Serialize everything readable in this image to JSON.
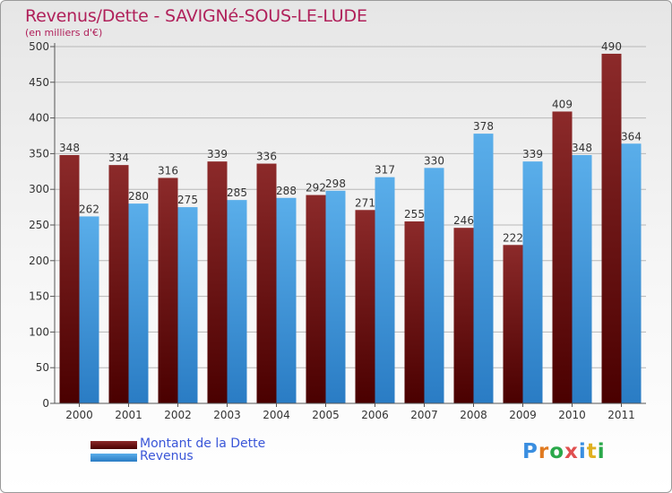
{
  "header": {
    "title": "Revenus/Dette - SAVIGNé-SOUS-LE-LUDE",
    "subtitle": "(en milliers d'€)"
  },
  "colors": {
    "dette": "#7a1818",
    "revenus": "#3d9ae0",
    "title": "#b0205a",
    "legend_text": "#3a56d8"
  },
  "legend": [
    {
      "label": "Montant de la Dette",
      "color": "#6e0f0f"
    },
    {
      "label": "Revenus",
      "color": "#3d9ae0"
    }
  ],
  "logo": {
    "text": "Proxiti"
  },
  "chart_data": {
    "type": "bar",
    "title": "Revenus/Dette - SAVIGNé-SOUS-LE-LUDE",
    "subtitle": "(en milliers d'€)",
    "categories": [
      "2000",
      "2001",
      "2002",
      "2003",
      "2004",
      "2005",
      "2006",
      "2007",
      "2008",
      "2009",
      "2010",
      "2011"
    ],
    "series": [
      {
        "name": "Montant de la Dette",
        "values": [
          348,
          334,
          316,
          339,
          336,
          292,
          271,
          255,
          246,
          222,
          409,
          490
        ]
      },
      {
        "name": "Revenus",
        "values": [
          262,
          280,
          275,
          285,
          288,
          298,
          317,
          330,
          378,
          339,
          348,
          364
        ]
      }
    ],
    "ylim": [
      0,
      500
    ],
    "yticks": [
      0,
      50,
      100,
      150,
      200,
      250,
      300,
      350,
      400,
      450,
      500
    ],
    "grid": true,
    "legend_position": "bottom-left",
    "data_labels": true
  }
}
